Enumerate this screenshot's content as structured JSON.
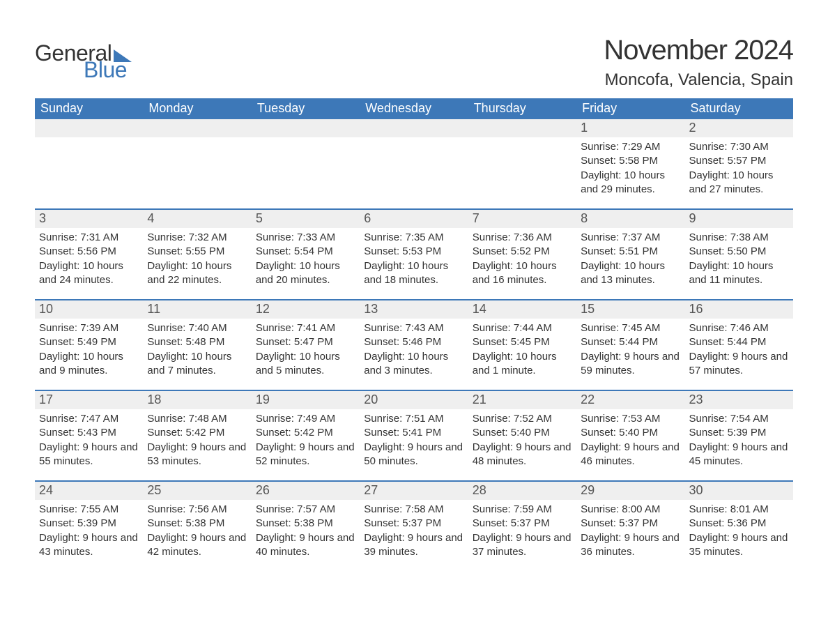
{
  "logo": {
    "text_general": "General",
    "text_blue": "Blue"
  },
  "title": "November 2024",
  "location": "Moncofa, Valencia, Spain",
  "colors": {
    "brand_blue": "#3d78b8",
    "header_bg": "#3d78b8",
    "header_text": "#ffffff",
    "daynum_bg": "#efefef",
    "text": "#333333",
    "page_bg": "#ffffff"
  },
  "fonts": {
    "family": "Arial, Helvetica, sans-serif",
    "title_size_pt": 30,
    "location_size_pt": 18,
    "dow_size_pt": 14,
    "daynum_size_pt": 14,
    "body_size_pt": 11
  },
  "days_of_week": [
    "Sunday",
    "Monday",
    "Tuesday",
    "Wednesday",
    "Thursday",
    "Friday",
    "Saturday"
  ],
  "weeks": [
    [
      {
        "empty": true
      },
      {
        "empty": true
      },
      {
        "empty": true
      },
      {
        "empty": true
      },
      {
        "empty": true
      },
      {
        "day": 1,
        "sunrise": "7:29 AM",
        "sunset": "5:58 PM",
        "daylight": "10 hours and 29 minutes."
      },
      {
        "day": 2,
        "sunrise": "7:30 AM",
        "sunset": "5:57 PM",
        "daylight": "10 hours and 27 minutes."
      }
    ],
    [
      {
        "day": 3,
        "sunrise": "7:31 AM",
        "sunset": "5:56 PM",
        "daylight": "10 hours and 24 minutes."
      },
      {
        "day": 4,
        "sunrise": "7:32 AM",
        "sunset": "5:55 PM",
        "daylight": "10 hours and 22 minutes."
      },
      {
        "day": 5,
        "sunrise": "7:33 AM",
        "sunset": "5:54 PM",
        "daylight": "10 hours and 20 minutes."
      },
      {
        "day": 6,
        "sunrise": "7:35 AM",
        "sunset": "5:53 PM",
        "daylight": "10 hours and 18 minutes."
      },
      {
        "day": 7,
        "sunrise": "7:36 AM",
        "sunset": "5:52 PM",
        "daylight": "10 hours and 16 minutes."
      },
      {
        "day": 8,
        "sunrise": "7:37 AM",
        "sunset": "5:51 PM",
        "daylight": "10 hours and 13 minutes."
      },
      {
        "day": 9,
        "sunrise": "7:38 AM",
        "sunset": "5:50 PM",
        "daylight": "10 hours and 11 minutes."
      }
    ],
    [
      {
        "day": 10,
        "sunrise": "7:39 AM",
        "sunset": "5:49 PM",
        "daylight": "10 hours and 9 minutes."
      },
      {
        "day": 11,
        "sunrise": "7:40 AM",
        "sunset": "5:48 PM",
        "daylight": "10 hours and 7 minutes."
      },
      {
        "day": 12,
        "sunrise": "7:41 AM",
        "sunset": "5:47 PM",
        "daylight": "10 hours and 5 minutes."
      },
      {
        "day": 13,
        "sunrise": "7:43 AM",
        "sunset": "5:46 PM",
        "daylight": "10 hours and 3 minutes."
      },
      {
        "day": 14,
        "sunrise": "7:44 AM",
        "sunset": "5:45 PM",
        "daylight": "10 hours and 1 minute."
      },
      {
        "day": 15,
        "sunrise": "7:45 AM",
        "sunset": "5:44 PM",
        "daylight": "9 hours and 59 minutes."
      },
      {
        "day": 16,
        "sunrise": "7:46 AM",
        "sunset": "5:44 PM",
        "daylight": "9 hours and 57 minutes."
      }
    ],
    [
      {
        "day": 17,
        "sunrise": "7:47 AM",
        "sunset": "5:43 PM",
        "daylight": "9 hours and 55 minutes."
      },
      {
        "day": 18,
        "sunrise": "7:48 AM",
        "sunset": "5:42 PM",
        "daylight": "9 hours and 53 minutes."
      },
      {
        "day": 19,
        "sunrise": "7:49 AM",
        "sunset": "5:42 PM",
        "daylight": "9 hours and 52 minutes."
      },
      {
        "day": 20,
        "sunrise": "7:51 AM",
        "sunset": "5:41 PM",
        "daylight": "9 hours and 50 minutes."
      },
      {
        "day": 21,
        "sunrise": "7:52 AM",
        "sunset": "5:40 PM",
        "daylight": "9 hours and 48 minutes."
      },
      {
        "day": 22,
        "sunrise": "7:53 AM",
        "sunset": "5:40 PM",
        "daylight": "9 hours and 46 minutes."
      },
      {
        "day": 23,
        "sunrise": "7:54 AM",
        "sunset": "5:39 PM",
        "daylight": "9 hours and 45 minutes."
      }
    ],
    [
      {
        "day": 24,
        "sunrise": "7:55 AM",
        "sunset": "5:39 PM",
        "daylight": "9 hours and 43 minutes."
      },
      {
        "day": 25,
        "sunrise": "7:56 AM",
        "sunset": "5:38 PM",
        "daylight": "9 hours and 42 minutes."
      },
      {
        "day": 26,
        "sunrise": "7:57 AM",
        "sunset": "5:38 PM",
        "daylight": "9 hours and 40 minutes."
      },
      {
        "day": 27,
        "sunrise": "7:58 AM",
        "sunset": "5:37 PM",
        "daylight": "9 hours and 39 minutes."
      },
      {
        "day": 28,
        "sunrise": "7:59 AM",
        "sunset": "5:37 PM",
        "daylight": "9 hours and 37 minutes."
      },
      {
        "day": 29,
        "sunrise": "8:00 AM",
        "sunset": "5:37 PM",
        "daylight": "9 hours and 36 minutes."
      },
      {
        "day": 30,
        "sunrise": "8:01 AM",
        "sunset": "5:36 PM",
        "daylight": "9 hours and 35 minutes."
      }
    ]
  ],
  "labels": {
    "sunrise_prefix": "Sunrise: ",
    "sunset_prefix": "Sunset: ",
    "daylight_prefix": "Daylight: "
  }
}
